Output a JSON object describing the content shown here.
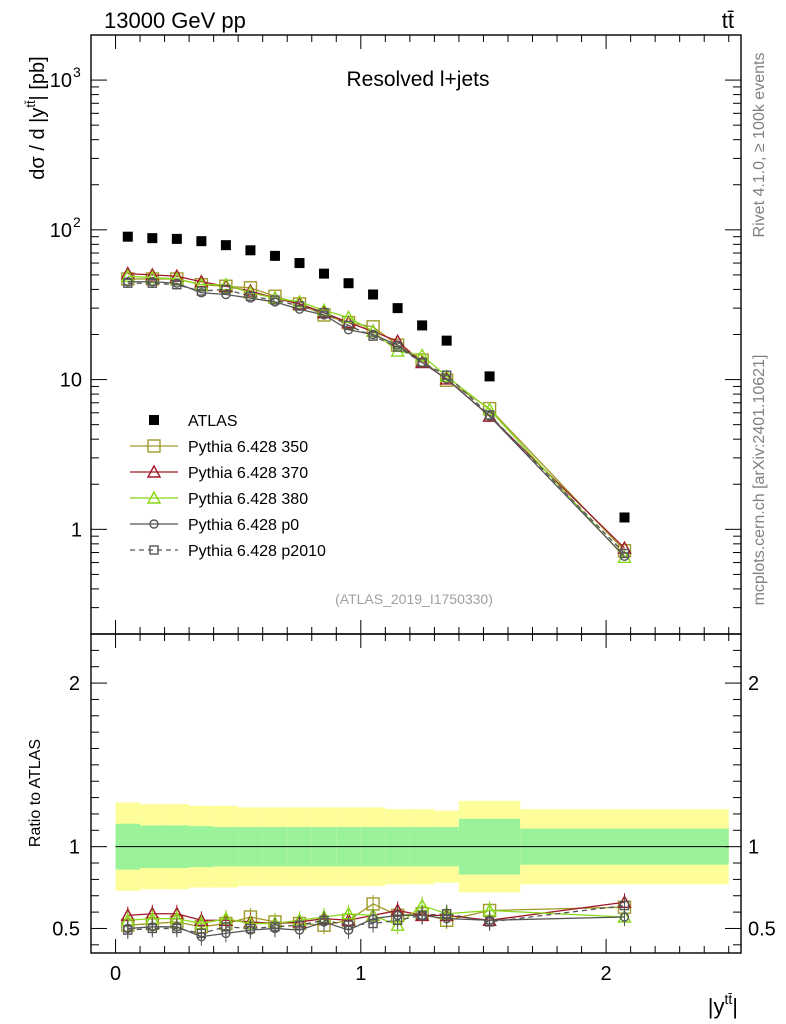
{
  "header": {
    "energy_label": "13000 GeV pp",
    "process_label": "tt̄"
  },
  "side": {
    "rivet_label": "Rivet 4.1.0, ≥ 100k events",
    "mcplots_label": "mcplots.cern.ch [arXiv:2401.10621]"
  },
  "chart_data": [
    {
      "type": "scatter",
      "panel": "main",
      "title": "Resolved l+jets",
      "ylabel": "dσ / d |y^{tt̄}| [pb]",
      "ylabel_text": "dσ / d |y",
      "ylabel_sup": "tt̄",
      "ylabel_tail": "| [pb]",
      "yscale": "log",
      "xlim": [
        -0.1,
        2.55
      ],
      "ylim": [
        0.2,
        2000
      ],
      "y_tick_labels": [
        "1",
        "10",
        "10",
        "10"
      ],
      "y_tick_sups": [
        "",
        "",
        "2",
        "3"
      ],
      "analysis_label": "(ATLAS_2019_I1750330)",
      "x": [
        0.05,
        0.15,
        0.25,
        0.35,
        0.45,
        0.55,
        0.65,
        0.75,
        0.85,
        0.95,
        1.05,
        1.15,
        1.25,
        1.35,
        1.525,
        2.075
      ],
      "series": [
        {
          "name": "ATLAS",
          "color": "#000000",
          "marker": "filled-square",
          "values": [
            90,
            88,
            87,
            84,
            79,
            73,
            67,
            60,
            51,
            44,
            37,
            30,
            23,
            18.2,
            10.5,
            1.2
          ]
        },
        {
          "name": "Pythia 6.428 350",
          "color": "#a09a2a",
          "marker": "open-square",
          "dash": false,
          "values": [
            47,
            47,
            47,
            43,
            42,
            41,
            36,
            32,
            27,
            24,
            22.5,
            17,
            13.5,
            9.9,
            6.4,
            0.72
          ]
        },
        {
          "name": "Pythia 6.428 370",
          "color": "#a01828",
          "marker": "open-triangle",
          "dash": false,
          "values": [
            51,
            50,
            49,
            45,
            42,
            39,
            35,
            32,
            28,
            24,
            21,
            18,
            13,
            10.1,
            5.7,
            0.75
          ]
        },
        {
          "name": "Pythia 6.428 380",
          "color": "#88d818",
          "marker": "open-triangle",
          "dash": false,
          "values": [
            49,
            48,
            47,
            43,
            43,
            38,
            35,
            33,
            29,
            26,
            21,
            15.5,
            14.5,
            10.5,
            6.3,
            0.65
          ]
        },
        {
          "name": "Pythia 6.428 p0",
          "color": "#555555",
          "marker": "open-circle",
          "dash": false,
          "values": [
            45,
            45,
            44,
            38,
            37,
            35,
            33,
            29.5,
            27,
            21.5,
            20,
            17,
            13,
            10.1,
            5.7,
            0.66
          ]
        },
        {
          "name": "Pythia 6.428 p2010",
          "color": "#555555",
          "marker": "open-square-small",
          "dash": true,
          "values": [
            44,
            44,
            43,
            39,
            40,
            36,
            34,
            31,
            28,
            23,
            19.5,
            16.5,
            13,
            10.7,
            5.8,
            0.69
          ]
        }
      ]
    },
    {
      "type": "line",
      "panel": "ratio",
      "ylabel": "Ratio to ATLAS",
      "xlabel": "|y^{tt̄}|",
      "xlabel_text": "|y",
      "xlabel_sup": "tt̄",
      "xlabel_tail": "|",
      "xlim": [
        -0.1,
        2.55
      ],
      "ylim": [
        0.35,
        2.3
      ],
      "y_tick_labels": [
        "0.5",
        "1",
        "2"
      ],
      "x_tick_labels": [
        "0",
        "1",
        "2"
      ],
      "band_edges": [
        0.0,
        0.1,
        0.2,
        0.3,
        0.4,
        0.5,
        0.6,
        0.7,
        0.8,
        0.9,
        1.0,
        1.1,
        1.2,
        1.3,
        1.4,
        1.65,
        2.5
      ],
      "band_inner": [
        0.14,
        0.13,
        0.13,
        0.125,
        0.12,
        0.12,
        0.12,
        0.12,
        0.12,
        0.12,
        0.12,
        0.12,
        0.12,
        0.12,
        0.17,
        0.11
      ],
      "band_outer": [
        0.27,
        0.26,
        0.26,
        0.25,
        0.25,
        0.24,
        0.24,
        0.24,
        0.24,
        0.24,
        0.24,
        0.23,
        0.23,
        0.22,
        0.28,
        0.23
      ],
      "band_colors": {
        "inner": "#9af29a",
        "outer": "#fdfd9a"
      },
      "x": [
        0.05,
        0.15,
        0.25,
        0.35,
        0.45,
        0.55,
        0.65,
        0.75,
        0.85,
        0.95,
        1.05,
        1.15,
        1.25,
        1.35,
        1.525,
        2.075
      ],
      "series": [
        {
          "name": "Pythia 6.428 350",
          "color": "#a09a2a",
          "marker": "open-square",
          "dash": false,
          "values": [
            0.52,
            0.53,
            0.54,
            0.51,
            0.53,
            0.57,
            0.54,
            0.53,
            0.52,
            0.55,
            0.65,
            0.58,
            0.59,
            0.55,
            0.61,
            0.63
          ]
        },
        {
          "name": "Pythia 6.428 370",
          "color": "#a01828",
          "marker": "open-triangle",
          "dash": false,
          "values": [
            0.58,
            0.59,
            0.59,
            0.55,
            0.55,
            0.54,
            0.53,
            0.54,
            0.56,
            0.55,
            0.58,
            0.61,
            0.58,
            0.58,
            0.55,
            0.66
          ]
        },
        {
          "name": "Pythia 6.428 380",
          "color": "#88d818",
          "marker": "open-triangle",
          "dash": false,
          "values": [
            0.55,
            0.56,
            0.56,
            0.53,
            0.56,
            0.53,
            0.53,
            0.55,
            0.57,
            0.59,
            0.58,
            0.52,
            0.64,
            0.59,
            0.61,
            0.57
          ]
        },
        {
          "name": "Pythia 6.428 p0",
          "color": "#555555",
          "marker": "open-circle",
          "dash": false,
          "values": [
            0.5,
            0.51,
            0.51,
            0.45,
            0.47,
            0.49,
            0.5,
            0.49,
            0.54,
            0.49,
            0.56,
            0.58,
            0.58,
            0.56,
            0.55,
            0.57
          ]
        },
        {
          "name": "Pythia 6.428 p2010",
          "color": "#555555",
          "marker": "open-square-small",
          "dash": true,
          "values": [
            0.49,
            0.5,
            0.5,
            0.47,
            0.51,
            0.5,
            0.51,
            0.52,
            0.55,
            0.52,
            0.53,
            0.55,
            0.58,
            0.59,
            0.54,
            0.64
          ]
        }
      ]
    }
  ]
}
